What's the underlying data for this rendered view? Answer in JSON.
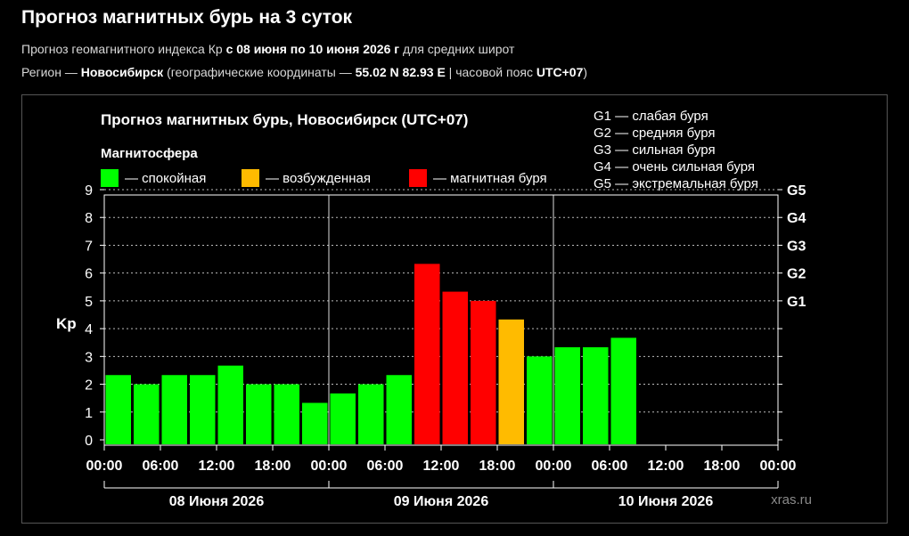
{
  "page": {
    "title": "Прогноз магнитных бурь на 3 суток",
    "line1_prefix": "Прогноз геомагнитного индекса Кр ",
    "line1_range": "с 08 июня по 10 июня 2026 г",
    "line1_suffix": " для средних широт",
    "line2_prefix": "Регион — ",
    "line2_region": "Новосибирск",
    "line2_coords_text": " (географические координаты — ",
    "line2_coords": "55.02 N 82.93 E",
    "line2_tz_text": " | часовой пояс ",
    "line2_tz": "UTC+07",
    "line2_end": ")"
  },
  "chart_data": {
    "type": "bar",
    "title": "Прогноз магнитных бурь, Новосибирск (UTC+07)",
    "legend_title": "Магнитосфера",
    "legend": [
      {
        "label": "— спокойная",
        "color": "#00ff00"
      },
      {
        "label": "— возбужденная",
        "color": "#ffbb00"
      },
      {
        "label": "— магнитная буря",
        "color": "#ff0000"
      }
    ],
    "g_scale": [
      "G1 — слабая буря",
      "G2 — средняя буря",
      "G3 — сильная буря",
      "G4 — очень сильная буря",
      "G5 — экстремальная буря"
    ],
    "ylabel": "Kp",
    "ylim": [
      0,
      9
    ],
    "yticks": [
      "0",
      "1",
      "2",
      "3",
      "4",
      "5",
      "6",
      "7",
      "8",
      "9"
    ],
    "right_ticks": [
      {
        "value": 5,
        "label": "G1"
      },
      {
        "value": 6,
        "label": "G2"
      },
      {
        "value": 7,
        "label": "G3"
      },
      {
        "value": 8,
        "label": "G4"
      },
      {
        "value": 9,
        "label": "G5"
      }
    ],
    "xticks": [
      "00:00",
      "06:00",
      "12:00",
      "18:00",
      "00:00",
      "06:00",
      "12:00",
      "18:00",
      "00:00",
      "06:00",
      "12:00",
      "18:00",
      "00:00"
    ],
    "days": [
      "08 Июня 2026",
      "09 Июня 2026",
      "10 Июня 2026"
    ],
    "watermark": "xras.ru",
    "bars": [
      {
        "start_hour": 0,
        "kp": 2.33,
        "level": "quiet"
      },
      {
        "start_hour": 3,
        "kp": 2.0,
        "level": "quiet"
      },
      {
        "start_hour": 6,
        "kp": 2.33,
        "level": "quiet"
      },
      {
        "start_hour": 9,
        "kp": 2.33,
        "level": "quiet"
      },
      {
        "start_hour": 12,
        "kp": 2.67,
        "level": "quiet"
      },
      {
        "start_hour": 15,
        "kp": 2.0,
        "level": "quiet"
      },
      {
        "start_hour": 18,
        "kp": 2.0,
        "level": "quiet"
      },
      {
        "start_hour": 21,
        "kp": 1.33,
        "level": "quiet"
      },
      {
        "start_hour": 24,
        "kp": 1.67,
        "level": "quiet"
      },
      {
        "start_hour": 27,
        "kp": 2.0,
        "level": "quiet"
      },
      {
        "start_hour": 30,
        "kp": 2.33,
        "level": "quiet"
      },
      {
        "start_hour": 33,
        "kp": 6.33,
        "level": "storm"
      },
      {
        "start_hour": 36,
        "kp": 5.33,
        "level": "storm"
      },
      {
        "start_hour": 39,
        "kp": 5.0,
        "level": "storm"
      },
      {
        "start_hour": 42,
        "kp": 4.33,
        "level": "active"
      },
      {
        "start_hour": 45,
        "kp": 3.0,
        "level": "quiet"
      },
      {
        "start_hour": 48,
        "kp": 3.33,
        "level": "quiet"
      },
      {
        "start_hour": 51,
        "kp": 3.33,
        "level": "quiet"
      },
      {
        "start_hour": 54,
        "kp": 3.67,
        "level": "quiet"
      }
    ],
    "level_colors": {
      "quiet": "#00ff00",
      "active": "#ffbb00",
      "storm": "#ff0000"
    },
    "grid": true
  }
}
